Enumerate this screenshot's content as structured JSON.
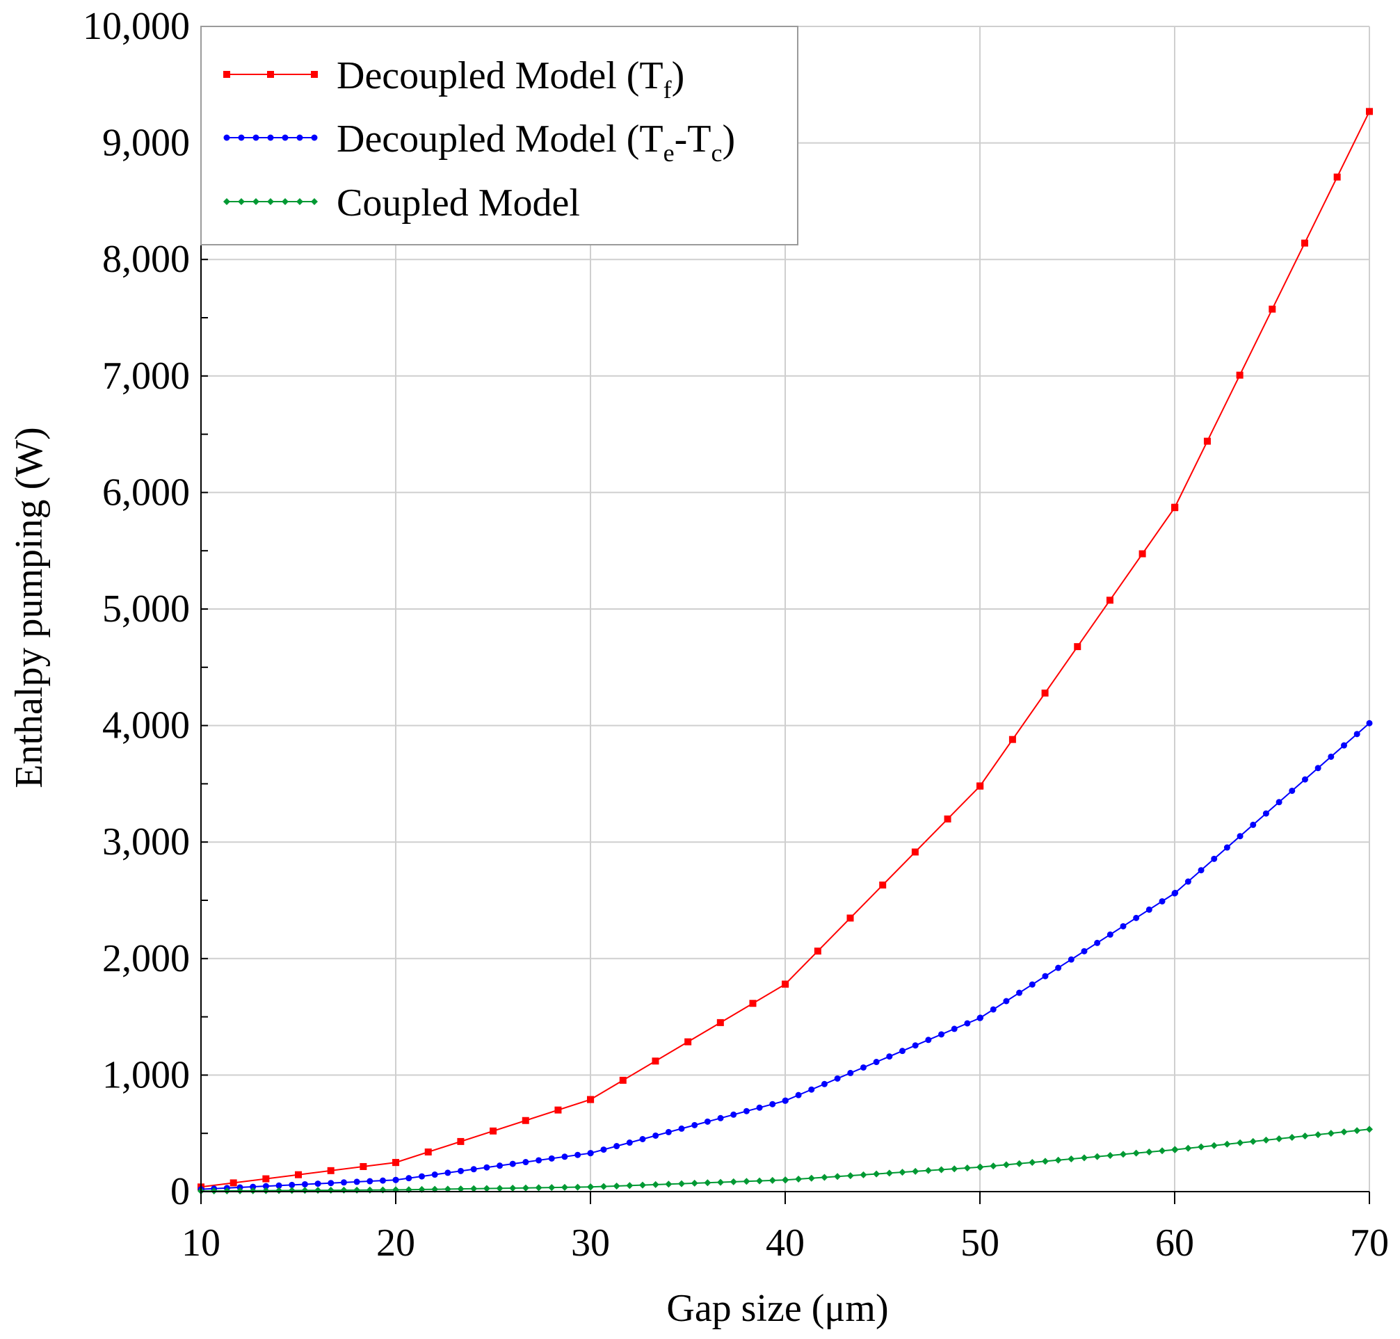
{
  "chart_data": {
    "type": "line",
    "title": "",
    "xlabel": "Gap size (μm)",
    "ylabel": "Enthalpy pumping (W)",
    "xlim": [
      10,
      70
    ],
    "ylim": [
      0,
      10000
    ],
    "x_ticks": [
      10,
      20,
      30,
      40,
      50,
      60,
      70
    ],
    "x_tick_labels": [
      "10",
      "20",
      "30",
      "40",
      "50",
      "60",
      "70"
    ],
    "y_ticks": [
      0,
      1000,
      2000,
      3000,
      4000,
      5000,
      6000,
      7000,
      8000,
      9000,
      10000
    ],
    "y_tick_labels": [
      "0",
      "1,000",
      "2,000",
      "3,000",
      "4,000",
      "5,000",
      "6,000",
      "7,000",
      "8,000",
      "9,000",
      "10,000"
    ],
    "grid": true,
    "legend_position": "top-left",
    "series": [
      {
        "name": "Decoupled Model (Tf)",
        "legend": {
          "main": "Decoupled Model (T",
          "sub": "f",
          "tail": ")"
        },
        "color": "#ff0000",
        "marker": "square",
        "x": [
          10,
          20,
          30,
          40,
          50,
          60,
          70
        ],
        "values": [
          40,
          250,
          790,
          1780,
          3480,
          5870,
          9270
        ]
      },
      {
        "name": "Decoupled Model (Te-Tc)",
        "legend": {
          "main": "Decoupled Model (T",
          "sub": "e",
          "mid": "-T",
          "sub2": "c",
          "tail": ")"
        },
        "color": "#0000ff",
        "marker": "circle",
        "x": [
          10,
          20,
          30,
          40,
          50,
          60,
          70
        ],
        "values": [
          20,
          100,
          330,
          780,
          1490,
          2560,
          4020
        ]
      },
      {
        "name": "Coupled Model",
        "legend": {
          "main": "Coupled Model"
        },
        "color": "#009933",
        "marker": "diamond",
        "x": [
          10,
          20,
          30,
          40,
          50,
          60,
          70
        ],
        "values": [
          5,
          15,
          40,
          100,
          210,
          360,
          535
        ]
      }
    ]
  }
}
